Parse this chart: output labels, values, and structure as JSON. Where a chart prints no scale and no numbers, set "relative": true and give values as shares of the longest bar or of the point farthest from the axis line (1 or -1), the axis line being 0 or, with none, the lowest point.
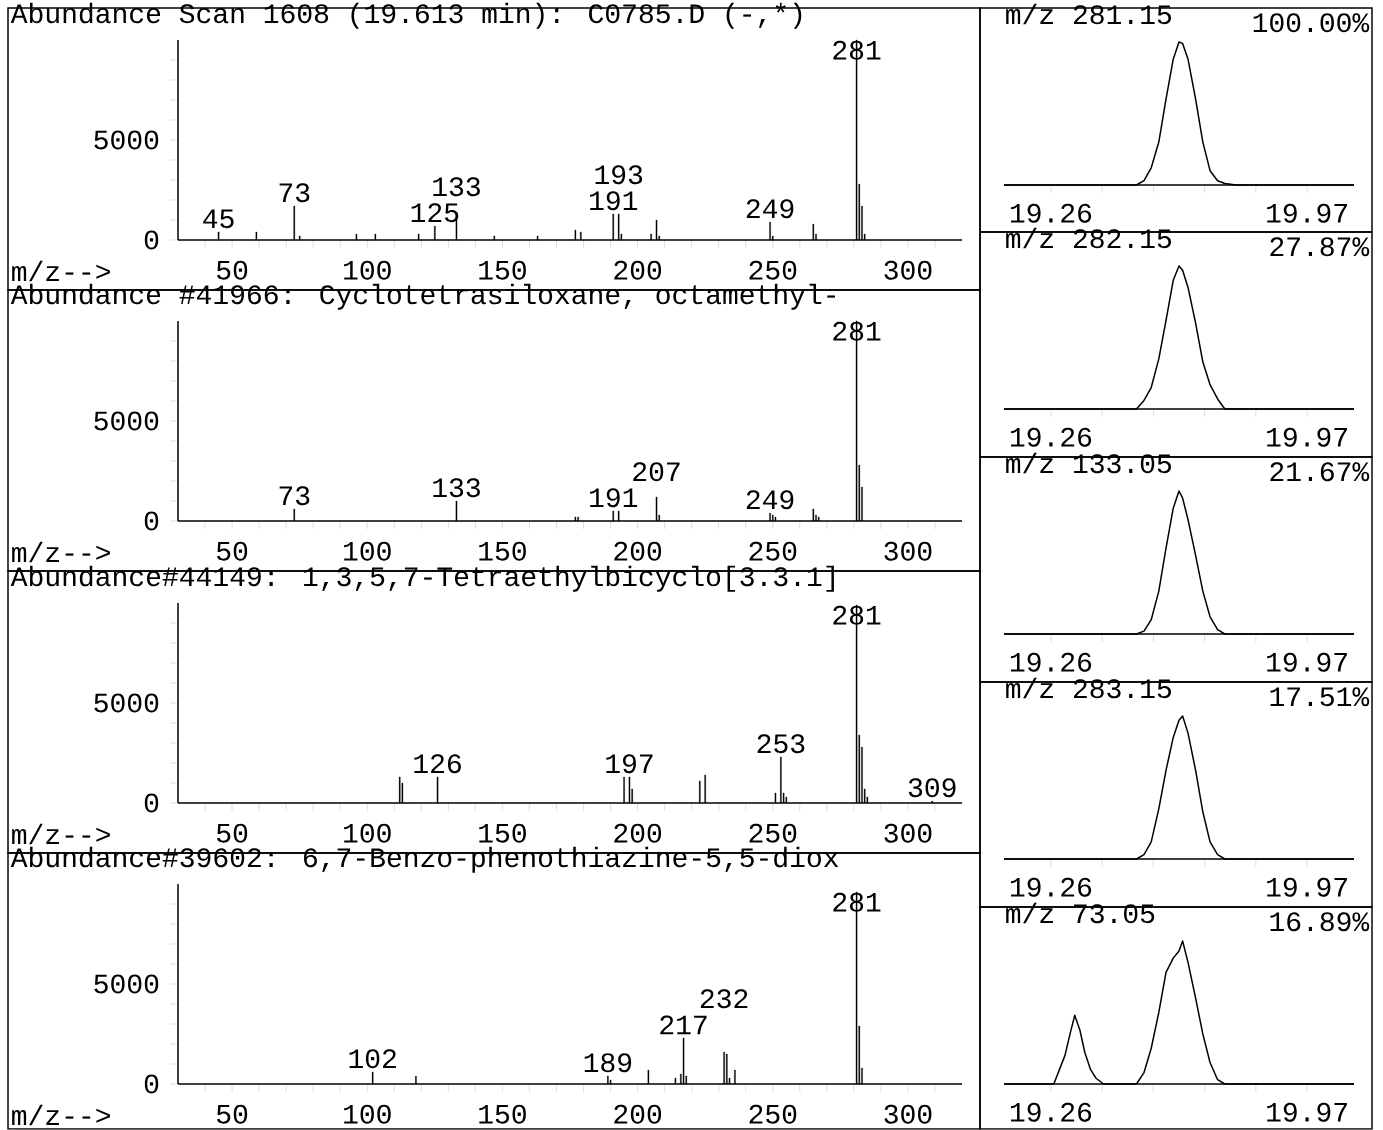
{
  "chart_data": [
    {
      "type": "bar",
      "title": "Abundance  Scan 1608 (19.613 min): C0785.D (-,*)",
      "xlabel": "m/z-->",
      "color": "#000000",
      "x": [
        45,
        59,
        73,
        75,
        96,
        103,
        119,
        125,
        133,
        147,
        163,
        177,
        179,
        191,
        193,
        194,
        205,
        207,
        208,
        249,
        250,
        265,
        266,
        281,
        282,
        283,
        284
      ],
      "values": [
        400,
        400,
        1700,
        200,
        300,
        300,
        300,
        700,
        1300,
        200,
        200,
        500,
        400,
        1300,
        1300,
        300,
        300,
        1000,
        200,
        900,
        200,
        800,
        300,
        10000,
        2800,
        1700,
        300
      ],
      "xlim": [
        30,
        320
      ],
      "ylim": [
        0,
        10000
      ],
      "xticks": [
        {
          "value": 40,
          "label": null
        },
        50,
        {
          "value": 60,
          "label": null
        },
        {
          "value": 70,
          "label": null
        },
        {
          "value": 80,
          "label": null
        },
        {
          "value": 90,
          "label": null
        },
        100,
        {
          "value": 110,
          "label": null
        },
        {
          "value": 120,
          "label": null
        },
        {
          "value": 130,
          "label": null
        },
        {
          "value": 140,
          "label": null
        },
        150,
        {
          "value": 160,
          "label": null
        },
        {
          "value": 170,
          "label": null
        },
        {
          "value": 180,
          "label": null
        },
        {
          "value": 190,
          "label": null
        },
        200,
        {
          "value": 210,
          "label": null
        },
        {
          "value": 220,
          "label": null
        },
        {
          "value": 230,
          "label": null
        },
        {
          "value": 240,
          "label": null
        },
        250,
        {
          "value": 260,
          "label": null
        },
        {
          "value": 270,
          "label": null
        },
        {
          "value": 280,
          "label": null
        },
        {
          "value": 290,
          "label": null
        },
        300,
        {
          "value": 310,
          "label": null
        }
      ],
      "yticks": [
        0,
        {
          "value": 1000,
          "label": null
        },
        {
          "value": 2000,
          "label": null
        },
        {
          "value": 3000,
          "label": null
        },
        {
          "value": 4000,
          "label": null
        },
        5000,
        {
          "value": 6000,
          "label": null
        },
        {
          "value": 7000,
          "label": null
        },
        {
          "value": 8000,
          "label": null
        },
        {
          "value": 9000,
          "label": null
        }
      ],
      "annotations": [
        {
          "text": "45",
          "x": 45,
          "y": 400
        },
        {
          "text": "73",
          "x": 73,
          "y": 1700
        },
        {
          "text": "125",
          "x": 125,
          "y": 700
        },
        {
          "text": "133",
          "x": 133,
          "y": 1300
        },
        {
          "text": "191",
          "x": 191,
          "y": 1300
        },
        {
          "text": "193",
          "x": 193,
          "y": 1300
        },
        {
          "text": "249",
          "x": 249,
          "y": 900
        },
        {
          "text": "281",
          "x": 281,
          "y": 10000
        }
      ]
    },
    {
      "type": "bar",
      "title": "Abundance #41966: Cyclotetrasiloxane, octamethyl-",
      "xlabel": "m/z-->",
      "color": "#000000",
      "x": [
        73,
        133,
        177,
        178,
        191,
        193,
        207,
        208,
        249,
        250,
        251,
        265,
        266,
        267,
        281,
        282,
        283
      ],
      "values": [
        600,
        1000,
        200,
        200,
        500,
        500,
        1200,
        300,
        400,
        300,
        200,
        600,
        300,
        200,
        10000,
        2800,
        1700
      ],
      "xlim": [
        30,
        320
      ],
      "ylim": [
        0,
        10000
      ],
      "xticks": [
        {
          "value": 40,
          "label": null
        },
        50,
        {
          "value": 60,
          "label": null
        },
        {
          "value": 70,
          "label": null
        },
        {
          "value": 80,
          "label": null
        },
        {
          "value": 90,
          "label": null
        },
        100,
        {
          "value": 110,
          "label": null
        },
        {
          "value": 120,
          "label": null
        },
        {
          "value": 130,
          "label": null
        },
        {
          "value": 140,
          "label": null
        },
        150,
        {
          "value": 160,
          "label": null
        },
        {
          "value": 170,
          "label": null
        },
        {
          "value": 180,
          "label": null
        },
        {
          "value": 190,
          "label": null
        },
        200,
        {
          "value": 210,
          "label": null
        },
        {
          "value": 220,
          "label": null
        },
        {
          "value": 230,
          "label": null
        },
        {
          "value": 240,
          "label": null
        },
        250,
        {
          "value": 260,
          "label": null
        },
        {
          "value": 270,
          "label": null
        },
        {
          "value": 280,
          "label": null
        },
        {
          "value": 290,
          "label": null
        },
        300,
        {
          "value": 310,
          "label": null
        }
      ],
      "yticks": [
        0,
        {
          "value": 1000,
          "label": null
        },
        {
          "value": 2000,
          "label": null
        },
        {
          "value": 3000,
          "label": null
        },
        {
          "value": 4000,
          "label": null
        },
        5000,
        {
          "value": 6000,
          "label": null
        },
        {
          "value": 7000,
          "label": null
        },
        {
          "value": 8000,
          "label": null
        },
        {
          "value": 9000,
          "label": null
        }
      ],
      "annotations": [
        {
          "text": "73",
          "x": 73,
          "y": 600
        },
        {
          "text": "133",
          "x": 133,
          "y": 1000
        },
        {
          "text": "191",
          "x": 191,
          "y": 500
        },
        {
          "text": "207",
          "x": 207,
          "y": 1200
        },
        {
          "text": "249",
          "x": 249,
          "y": 400
        },
        {
          "text": "281",
          "x": 281,
          "y": 10000
        }
      ]
    },
    {
      "type": "bar",
      "title": "Abundance#44149: 1,3,5,7-Tetraethylbicyclo[3.3.1]",
      "xlabel": "m/z-->",
      "color": "#000000",
      "x": [
        112,
        113,
        126,
        195,
        197,
        198,
        223,
        225,
        251,
        253,
        254,
        255,
        281,
        282,
        283,
        284,
        285,
        309
      ],
      "values": [
        1300,
        1000,
        1300,
        1300,
        1300,
        700,
        1100,
        1400,
        500,
        2300,
        500,
        300,
        9900,
        3400,
        2800,
        700,
        300,
        100
      ],
      "xlim": [
        30,
        320
      ],
      "ylim": [
        0,
        10000
      ],
      "xticks": [
        {
          "value": 40,
          "label": null
        },
        50,
        {
          "value": 60,
          "label": null
        },
        {
          "value": 70,
          "label": null
        },
        {
          "value": 80,
          "label": null
        },
        {
          "value": 90,
          "label": null
        },
        100,
        {
          "value": 110,
          "label": null
        },
        {
          "value": 120,
          "label": null
        },
        {
          "value": 130,
          "label": null
        },
        {
          "value": 140,
          "label": null
        },
        150,
        {
          "value": 160,
          "label": null
        },
        {
          "value": 170,
          "label": null
        },
        {
          "value": 180,
          "label": null
        },
        {
          "value": 190,
          "label": null
        },
        200,
        {
          "value": 210,
          "label": null
        },
        {
          "value": 220,
          "label": null
        },
        {
          "value": 230,
          "label": null
        },
        {
          "value": 240,
          "label": null
        },
        250,
        {
          "value": 260,
          "label": null
        },
        {
          "value": 270,
          "label": null
        },
        {
          "value": 280,
          "label": null
        },
        {
          "value": 290,
          "label": null
        },
        300,
        {
          "value": 310,
          "label": null
        }
      ],
      "yticks": [
        0,
        {
          "value": 1000,
          "label": null
        },
        {
          "value": 2000,
          "label": null
        },
        {
          "value": 3000,
          "label": null
        },
        {
          "value": 4000,
          "label": null
        },
        5000,
        {
          "value": 6000,
          "label": null
        },
        {
          "value": 7000,
          "label": null
        },
        {
          "value": 8000,
          "label": null
        },
        {
          "value": 9000,
          "label": null
        }
      ],
      "annotations": [
        {
          "text": "126",
          "x": 126,
          "y": 1300
        },
        {
          "text": "197",
          "x": 197,
          "y": 1300
        },
        {
          "text": "253",
          "x": 253,
          "y": 2300
        },
        {
          "text": "281",
          "x": 281,
          "y": 9900
        },
        {
          "text": "309",
          "x": 309,
          "y": 100
        }
      ]
    },
    {
      "type": "bar",
      "title": "Abundance#39602: 6,7-Benzo-phenothiazine-5,5-diox",
      "xlabel": "m/z-->",
      "color": "#000000",
      "x": [
        102,
        118,
        189,
        190,
        204,
        214,
        216,
        217,
        218,
        232,
        233,
        234,
        236,
        281,
        282,
        283
      ],
      "values": [
        600,
        400,
        400,
        200,
        700,
        300,
        500,
        2300,
        400,
        1600,
        1500,
        300,
        700,
        9600,
        2900,
        800
      ],
      "xlim": [
        30,
        320
      ],
      "ylim": [
        0,
        10000
      ],
      "xticks": [
        {
          "value": 40,
          "label": null
        },
        50,
        {
          "value": 60,
          "label": null
        },
        {
          "value": 70,
          "label": null
        },
        {
          "value": 80,
          "label": null
        },
        {
          "value": 90,
          "label": null
        },
        100,
        {
          "value": 110,
          "label": null
        },
        {
          "value": 120,
          "label": null
        },
        {
          "value": 130,
          "label": null
        },
        {
          "value": 140,
          "label": null
        },
        150,
        {
          "value": 160,
          "label": null
        },
        {
          "value": 170,
          "label": null
        },
        {
          "value": 180,
          "label": null
        },
        {
          "value": 190,
          "label": null
        },
        200,
        {
          "value": 210,
          "label": null
        },
        {
          "value": 220,
          "label": null
        },
        {
          "value": 230,
          "label": null
        },
        {
          "value": 240,
          "label": null
        },
        250,
        {
          "value": 260,
          "label": null
        },
        {
          "value": 270,
          "label": null
        },
        {
          "value": 280,
          "label": null
        },
        {
          "value": 290,
          "label": null
        },
        300,
        {
          "value": 310,
          "label": null
        }
      ],
      "yticks": [
        0,
        {
          "value": 1000,
          "label": null
        },
        {
          "value": 2000,
          "label": null
        },
        {
          "value": 3000,
          "label": null
        },
        {
          "value": 4000,
          "label": null
        },
        5000,
        {
          "value": 6000,
          "label": null
        },
        {
          "value": 7000,
          "label": null
        },
        {
          "value": 8000,
          "label": null
        },
        {
          "value": 9000,
          "label": null
        }
      ],
      "annotations": [
        {
          "text": "102",
          "x": 102,
          "y": 600
        },
        {
          "text": "189",
          "x": 189,
          "y": 400
        },
        {
          "text": "217",
          "x": 217,
          "y": 2300
        },
        {
          "text": "232",
          "x": 232,
          "y": 1600
        },
        {
          "text": "281",
          "x": 281,
          "y": 9600
        }
      ]
    },
    {
      "type": "line",
      "relative": true,
      "title": "m/z 281.15",
      "subtitle": "100.00%",
      "color": "#000000",
      "x": [
        19.13,
        19.497,
        19.518,
        19.538,
        19.559,
        19.579,
        19.599,
        19.615,
        19.625,
        19.64,
        19.661,
        19.681,
        19.701,
        19.722,
        19.742,
        19.773,
        20.1
      ],
      "values": [
        0,
        0,
        0.03,
        0.12,
        0.3,
        0.6,
        0.88,
        1.0,
        0.99,
        0.88,
        0.6,
        0.3,
        0.1,
        0.03,
        0.01,
        0,
        0
      ],
      "xlim": [
        19.13,
        20.1
      ],
      "xticks": [
        19.26,
        {
          "value": 19.402,
          "label": null
        },
        {
          "value": 19.544,
          "label": null
        },
        {
          "value": 19.686,
          "label": null
        },
        {
          "value": 19.828,
          "label": null
        },
        19.97
      ]
    },
    {
      "type": "line",
      "relative": true,
      "title": "m/z 282.15",
      "subtitle": "27.87%",
      "color": "#000000",
      "x": [
        19.13,
        19.497,
        19.518,
        19.538,
        19.559,
        19.579,
        19.599,
        19.615,
        19.625,
        19.64,
        19.661,
        19.681,
        19.701,
        19.722,
        19.742,
        19.773,
        20.1
      ],
      "values": [
        0,
        0,
        0.06,
        0.15,
        0.35,
        0.62,
        0.9,
        1.0,
        0.97,
        0.85,
        0.6,
        0.33,
        0.17,
        0.07,
        0,
        0,
        0
      ],
      "xlim": [
        19.13,
        20.1
      ],
      "xticks": [
        19.26,
        {
          "value": 19.402,
          "label": null
        },
        {
          "value": 19.544,
          "label": null
        },
        {
          "value": 19.686,
          "label": null
        },
        {
          "value": 19.828,
          "label": null
        },
        19.97
      ]
    },
    {
      "type": "line",
      "relative": true,
      "title": "m/z 133.05",
      "subtitle": "21.67%",
      "color": "#000000",
      "x": [
        19.13,
        19.497,
        19.518,
        19.538,
        19.559,
        19.579,
        19.599,
        19.615,
        19.625,
        19.64,
        19.661,
        19.681,
        19.701,
        19.722,
        19.742,
        19.773,
        20.1
      ],
      "values": [
        0,
        0,
        0.02,
        0.1,
        0.3,
        0.6,
        0.88,
        1.0,
        0.95,
        0.8,
        0.55,
        0.3,
        0.12,
        0.03,
        0,
        0,
        0
      ],
      "xlim": [
        19.13,
        20.1
      ],
      "xticks": [
        19.26,
        {
          "value": 19.402,
          "label": null
        },
        {
          "value": 19.544,
          "label": null
        },
        {
          "value": 19.686,
          "label": null
        },
        {
          "value": 19.828,
          "label": null
        },
        19.97
      ]
    },
    {
      "type": "line",
      "relative": true,
      "title": "m/z 283.15",
      "subtitle": "17.51%",
      "color": "#000000",
      "x": [
        19.13,
        19.497,
        19.518,
        19.538,
        19.559,
        19.579,
        19.599,
        19.615,
        19.625,
        19.64,
        19.661,
        19.681,
        19.701,
        19.722,
        19.742,
        19.773,
        20.1
      ],
      "values": [
        0,
        0,
        0.03,
        0.12,
        0.35,
        0.62,
        0.85,
        0.97,
        1.0,
        0.88,
        0.62,
        0.33,
        0.12,
        0.03,
        0,
        0,
        0
      ],
      "xlim": [
        19.13,
        20.1
      ],
      "xticks": [
        19.26,
        {
          "value": 19.402,
          "label": null
        },
        {
          "value": 19.544,
          "label": null
        },
        {
          "value": 19.686,
          "label": null
        },
        {
          "value": 19.828,
          "label": null
        },
        19.97
      ]
    },
    {
      "type": "line",
      "relative": true,
      "title": "m/z  73.05",
      "subtitle": "16.89%",
      "color": "#000000",
      "x": [
        19.13,
        19.268,
        19.299,
        19.313,
        19.326,
        19.34,
        19.354,
        19.37,
        19.385,
        19.406,
        19.497,
        19.518,
        19.538,
        19.559,
        19.579,
        19.599,
        19.615,
        19.625,
        19.64,
        19.661,
        19.681,
        19.701,
        19.722,
        19.742,
        20.1
      ],
      "values": [
        0,
        0,
        0.2,
        0.35,
        0.48,
        0.38,
        0.22,
        0.1,
        0.04,
        0,
        0,
        0.08,
        0.25,
        0.5,
        0.78,
        0.88,
        0.93,
        1.0,
        0.85,
        0.6,
        0.35,
        0.15,
        0.03,
        0,
        0
      ],
      "xlim": [
        19.13,
        20.1
      ],
      "xticks": [
        19.26,
        {
          "value": 19.402,
          "label": null
        },
        {
          "value": 19.544,
          "label": null
        },
        {
          "value": 19.686,
          "label": null
        },
        {
          "value": 19.828,
          "label": null
        },
        19.97
      ]
    }
  ]
}
